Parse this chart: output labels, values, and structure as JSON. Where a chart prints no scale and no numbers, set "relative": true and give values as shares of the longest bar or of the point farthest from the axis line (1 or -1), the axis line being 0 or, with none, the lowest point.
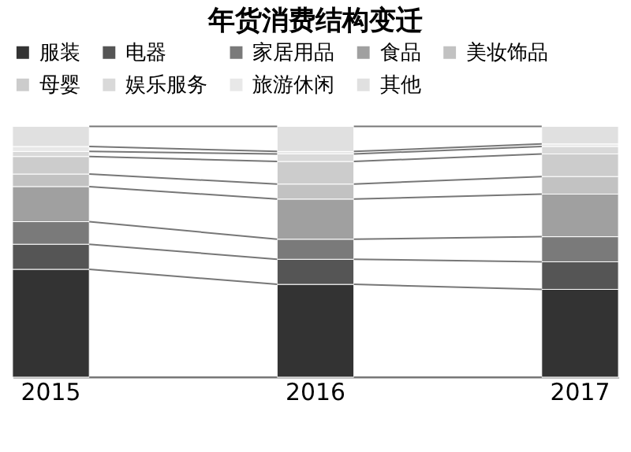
{
  "chart_data": {
    "type": "bar",
    "title": "年货消费结构变迁",
    "categories": [
      "2015",
      "2016",
      "2017"
    ],
    "stacked": true,
    "relative": true,
    "legend": "top",
    "series": [
      {
        "name": "服装",
        "color": "#333333",
        "values": [
          0.43,
          0.37,
          0.35
        ]
      },
      {
        "name": "电器",
        "color": "#555555",
        "values": [
          0.1,
          0.1,
          0.11
        ]
      },
      {
        "name": "家居用品",
        "color": "#7a7a7a",
        "values": [
          0.09,
          0.08,
          0.1
        ]
      },
      {
        "name": "食品",
        "color": "#a0a0a0",
        "values": [
          0.14,
          0.16,
          0.17
        ]
      },
      {
        "name": "美妆饰品",
        "color": "#c2c2c2",
        "values": [
          0.05,
          0.06,
          0.07
        ]
      },
      {
        "name": "母婴",
        "color": "#cccccc",
        "values": [
          0.07,
          0.09,
          0.09
        ]
      },
      {
        "name": "娱乐服务",
        "color": "#d9d9d9",
        "values": [
          0.02,
          0.03,
          0.03
        ]
      },
      {
        "name": "旅游休闲",
        "color": "#e8e8e8",
        "values": [
          0.02,
          0.01,
          0.01
        ]
      },
      {
        "name": "其他",
        "color": "#e0e0e0",
        "values": [
          0.08,
          0.1,
          0.07
        ]
      }
    ]
  }
}
